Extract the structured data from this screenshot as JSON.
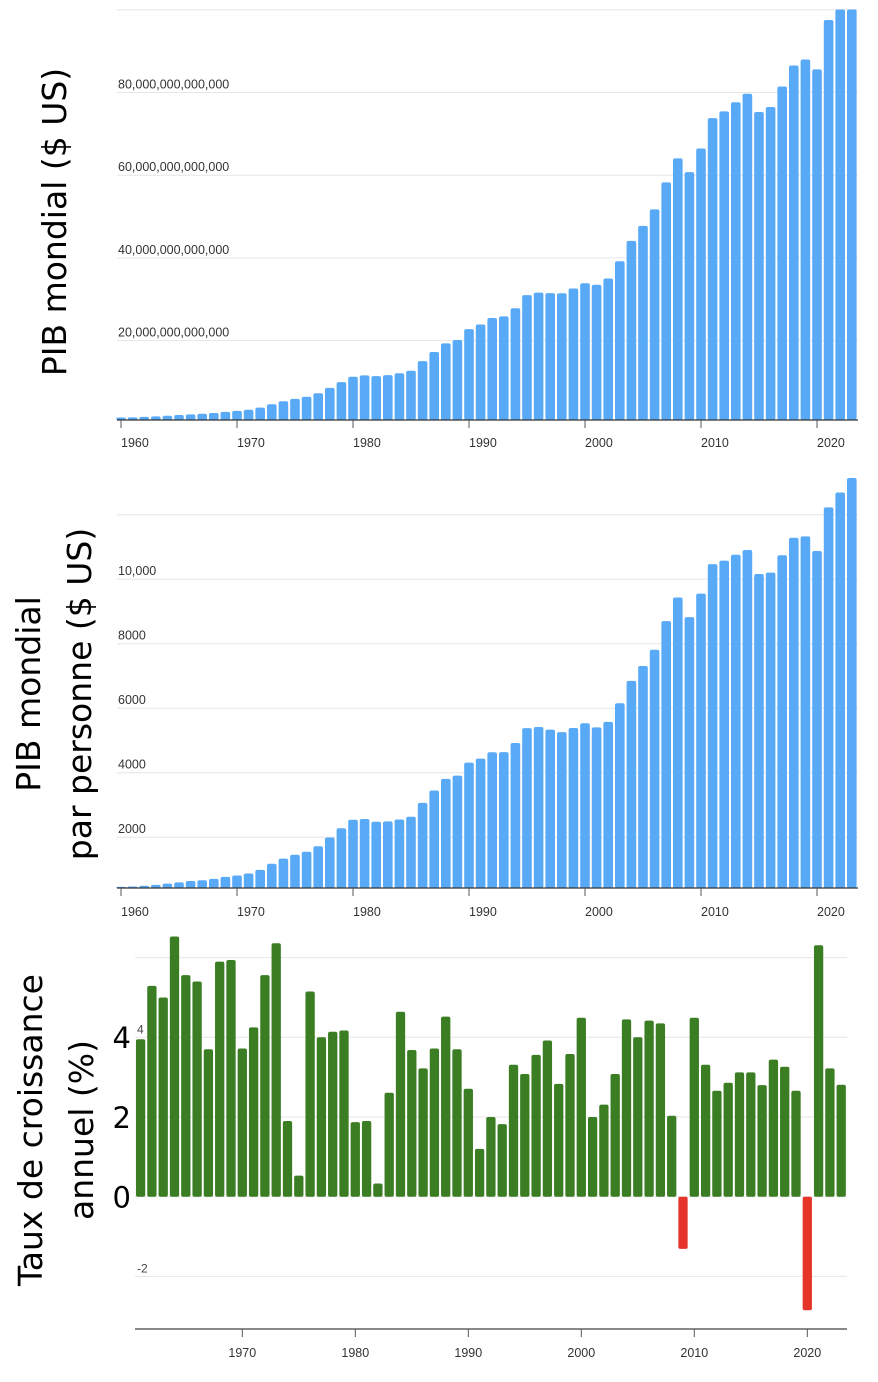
{
  "colors": {
    "gdp_bar": "#58aaf6",
    "growth_positive": "#3a7d22",
    "growth_negative": "#e5352a",
    "grid": "#e6e6e6"
  },
  "chart_data": [
    {
      "type": "bar",
      "ylabel": "PIB mondial ($ US)",
      "x_tick_labels": [
        "1960",
        "1970",
        "1980",
        "1990",
        "2000",
        "2010",
        "2020"
      ],
      "y_ticks": [
        20000000000000,
        40000000000000,
        60000000000000,
        80000000000000,
        100000000000000
      ],
      "y_tick_labels": [
        "20,000,000,000,000",
        "40,000,000,000,000",
        "60,000,000,000,000",
        "80,000,000,000,000",
        ""
      ],
      "ylim": [
        0,
        100000000000000
      ],
      "grid": true,
      "unit_scale": 1000000000000,
      "x": [
        1960,
        1961,
        1962,
        1963,
        1964,
        1965,
        1966,
        1967,
        1968,
        1969,
        1970,
        1971,
        1972,
        1973,
        1974,
        1975,
        1976,
        1977,
        1978,
        1979,
        1980,
        1981,
        1982,
        1983,
        1984,
        1985,
        1986,
        1987,
        1988,
        1989,
        1990,
        1991,
        1992,
        1993,
        1994,
        1995,
        1996,
        1997,
        1998,
        1999,
        2000,
        2001,
        2002,
        2003,
        2004,
        2005,
        2006,
        2007,
        2008,
        2009,
        2010,
        2011,
        2012,
        2013,
        2014,
        2015,
        2016,
        2017,
        2018,
        2019,
        2020,
        2021,
        2022,
        2023
      ],
      "values_trillions": [
        1.39,
        1.44,
        1.55,
        1.67,
        1.83,
        2.0,
        2.16,
        2.3,
        2.49,
        2.76,
        2.99,
        3.28,
        3.79,
        4.61,
        5.32,
        5.92,
        6.42,
        7.28,
        8.57,
        9.96,
        11.27,
        11.6,
        11.4,
        11.64,
        12.11,
        12.72,
        15.05,
        17.23,
        19.34,
        20.14,
        22.78,
        23.9,
        25.46,
        25.87,
        27.81,
        31.0,
        31.59,
        31.49,
        31.44,
        32.6,
        33.88,
        33.51,
        35.03,
        39.19,
        44.11,
        47.74,
        51.74,
        58.27,
        64.07,
        60.75,
        66.46,
        73.8,
        75.44,
        77.64,
        79.69,
        75.28,
        76.48,
        81.45,
        86.54,
        87.98,
        85.58,
        97.53,
        101.33,
        105.4
      ]
    },
    {
      "type": "bar",
      "ylabel": "PIB mondial par personne ($ US)",
      "ylabel_lines": [
        "PIB mondial",
        "par personne ($ US)"
      ],
      "x_tick_labels": [
        "1960",
        "1970",
        "1980",
        "1990",
        "2000",
        "2010",
        "2020"
      ],
      "y_ticks": [
        2000,
        4000,
        6000,
        8000,
        10000,
        12000
      ],
      "y_tick_labels": [
        "2000",
        "4000",
        "6000",
        "8000",
        "10,000",
        ""
      ],
      "ylim": [
        0,
        13200
      ],
      "grid": true,
      "x": [
        1960,
        1961,
        1962,
        1963,
        1964,
        1965,
        1966,
        1967,
        1968,
        1969,
        1970,
        1971,
        1972,
        1973,
        1974,
        1975,
        1976,
        1977,
        1978,
        1979,
        1980,
        1981,
        1982,
        1983,
        1984,
        1985,
        1986,
        1987,
        1988,
        1989,
        1990,
        1991,
        1992,
        1993,
        1994,
        1995,
        1996,
        1997,
        1998,
        1999,
        2000,
        2001,
        2002,
        2003,
        2004,
        2005,
        2006,
        2007,
        2008,
        2009,
        2010,
        2011,
        2012,
        2013,
        2014,
        2015,
        2016,
        2017,
        2018,
        2019,
        2020,
        2021,
        2022,
        2023
      ],
      "values": [
        458,
        470,
        494,
        522,
        561,
        601,
        640,
        667,
        708,
        771,
        814,
        874,
        988,
        1177,
        1334,
        1454,
        1547,
        1720,
        1991,
        2277,
        2541,
        2566,
        2478,
        2491,
        2549,
        2636,
        3063,
        3449,
        3807,
        3908,
        4311,
        4435,
        4633,
        4638,
        4920,
        5381,
        5417,
        5337,
        5259,
        5385,
        5533,
        5405,
        5575,
        6153,
        6849,
        7309,
        7814,
        8700,
        9432,
        8825,
        9553,
        10468,
        10575,
        10760,
        10904,
        10160,
        10204,
        10743,
        11286,
        11327,
        10875,
        12229,
        12688,
        13138
      ]
    },
    {
      "type": "bar",
      "ylabel": "Taux de croissance annuel (%)",
      "ylabel_lines": [
        "Taux de croissance",
        "annuel (%)"
      ],
      "x_tick_labels": [
        "1970",
        "1980",
        "1990",
        "2000",
        "2010",
        "2020"
      ],
      "y_ticks": [
        -2,
        0,
        2,
        4,
        6
      ],
      "y_tick_labels": [
        "-2",
        "0",
        "2",
        "4",
        ""
      ],
      "overlay_tick_labels": [
        "0",
        "2",
        "4"
      ],
      "ylim": [
        -3.3,
        6.6
      ],
      "grid": true,
      "x": [
        1961,
        1962,
        1963,
        1964,
        1965,
        1966,
        1967,
        1968,
        1969,
        1970,
        1971,
        1972,
        1973,
        1974,
        1975,
        1976,
        1977,
        1978,
        1979,
        1980,
        1981,
        1982,
        1983,
        1984,
        1985,
        1986,
        1987,
        1988,
        1989,
        1990,
        1991,
        1992,
        1993,
        1994,
        1995,
        1996,
        1997,
        1998,
        1999,
        2000,
        2001,
        2002,
        2003,
        2004,
        2005,
        2006,
        2007,
        2008,
        2009,
        2010,
        2011,
        2012,
        2013,
        2014,
        2015,
        2016,
        2017,
        2018,
        2019,
        2020,
        2021,
        2022,
        2023
      ],
      "values": [
        3.95,
        5.29,
        5.0,
        6.53,
        5.56,
        5.4,
        3.7,
        5.9,
        5.94,
        3.72,
        4.25,
        5.56,
        6.36,
        1.9,
        0.53,
        5.15,
        4.0,
        4.14,
        4.17,
        1.87,
        1.9,
        0.33,
        2.61,
        4.64,
        3.68,
        3.22,
        3.72,
        4.52,
        3.7,
        2.71,
        1.2,
        2.0,
        1.82,
        3.31,
        3.08,
        3.56,
        3.92,
        2.83,
        3.58,
        4.49,
        2.0,
        2.31,
        3.08,
        4.45,
        4.0,
        4.42,
        4.35,
        2.03,
        -1.31,
        4.49,
        3.31,
        2.66,
        2.86,
        3.12,
        3.12,
        2.8,
        3.44,
        3.26,
        2.66,
        -2.85,
        6.31,
        3.22,
        2.81
      ]
    }
  ]
}
